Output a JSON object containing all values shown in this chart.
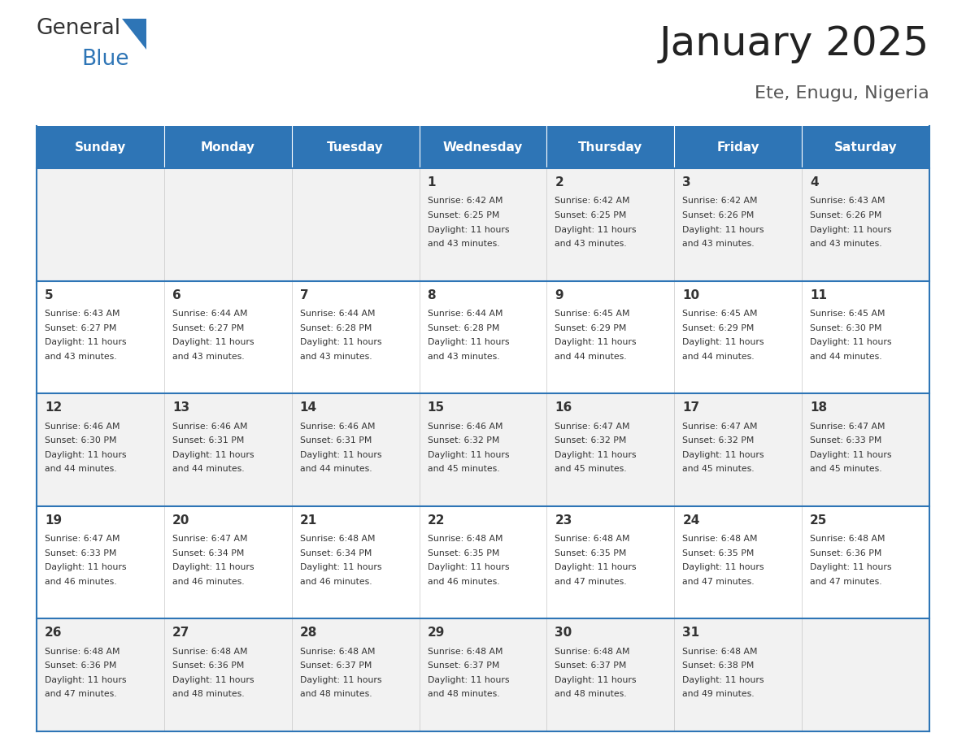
{
  "title": "January 2025",
  "subtitle": "Ete, Enugu, Nigeria",
  "header_color": "#2E75B6",
  "header_text_color": "#FFFFFF",
  "cell_bg_even": "#F2F2F2",
  "cell_bg_odd": "#FFFFFF",
  "border_color": "#2E75B6",
  "text_color": "#333333",
  "days_of_week": [
    "Sunday",
    "Monday",
    "Tuesday",
    "Wednesday",
    "Thursday",
    "Friday",
    "Saturday"
  ],
  "calendar": [
    [
      {
        "day": "",
        "sunrise": "",
        "sunset": "",
        "daylight": ""
      },
      {
        "day": "",
        "sunrise": "",
        "sunset": "",
        "daylight": ""
      },
      {
        "day": "",
        "sunrise": "",
        "sunset": "",
        "daylight": ""
      },
      {
        "day": "1",
        "sunrise": "6:42 AM",
        "sunset": "6:25 PM",
        "daylight": "11 hours and 43 minutes."
      },
      {
        "day": "2",
        "sunrise": "6:42 AM",
        "sunset": "6:25 PM",
        "daylight": "11 hours and 43 minutes."
      },
      {
        "day": "3",
        "sunrise": "6:42 AM",
        "sunset": "6:26 PM",
        "daylight": "11 hours and 43 minutes."
      },
      {
        "day": "4",
        "sunrise": "6:43 AM",
        "sunset": "6:26 PM",
        "daylight": "11 hours and 43 minutes."
      }
    ],
    [
      {
        "day": "5",
        "sunrise": "6:43 AM",
        "sunset": "6:27 PM",
        "daylight": "11 hours and 43 minutes."
      },
      {
        "day": "6",
        "sunrise": "6:44 AM",
        "sunset": "6:27 PM",
        "daylight": "11 hours and 43 minutes."
      },
      {
        "day": "7",
        "sunrise": "6:44 AM",
        "sunset": "6:28 PM",
        "daylight": "11 hours and 43 minutes."
      },
      {
        "day": "8",
        "sunrise": "6:44 AM",
        "sunset": "6:28 PM",
        "daylight": "11 hours and 43 minutes."
      },
      {
        "day": "9",
        "sunrise": "6:45 AM",
        "sunset": "6:29 PM",
        "daylight": "11 hours and 44 minutes."
      },
      {
        "day": "10",
        "sunrise": "6:45 AM",
        "sunset": "6:29 PM",
        "daylight": "11 hours and 44 minutes."
      },
      {
        "day": "11",
        "sunrise": "6:45 AM",
        "sunset": "6:30 PM",
        "daylight": "11 hours and 44 minutes."
      }
    ],
    [
      {
        "day": "12",
        "sunrise": "6:46 AM",
        "sunset": "6:30 PM",
        "daylight": "11 hours and 44 minutes."
      },
      {
        "day": "13",
        "sunrise": "6:46 AM",
        "sunset": "6:31 PM",
        "daylight": "11 hours and 44 minutes."
      },
      {
        "day": "14",
        "sunrise": "6:46 AM",
        "sunset": "6:31 PM",
        "daylight": "11 hours and 44 minutes."
      },
      {
        "day": "15",
        "sunrise": "6:46 AM",
        "sunset": "6:32 PM",
        "daylight": "11 hours and 45 minutes."
      },
      {
        "day": "16",
        "sunrise": "6:47 AM",
        "sunset": "6:32 PM",
        "daylight": "11 hours and 45 minutes."
      },
      {
        "day": "17",
        "sunrise": "6:47 AM",
        "sunset": "6:32 PM",
        "daylight": "11 hours and 45 minutes."
      },
      {
        "day": "18",
        "sunrise": "6:47 AM",
        "sunset": "6:33 PM",
        "daylight": "11 hours and 45 minutes."
      }
    ],
    [
      {
        "day": "19",
        "sunrise": "6:47 AM",
        "sunset": "6:33 PM",
        "daylight": "11 hours and 46 minutes."
      },
      {
        "day": "20",
        "sunrise": "6:47 AM",
        "sunset": "6:34 PM",
        "daylight": "11 hours and 46 minutes."
      },
      {
        "day": "21",
        "sunrise": "6:48 AM",
        "sunset": "6:34 PM",
        "daylight": "11 hours and 46 minutes."
      },
      {
        "day": "22",
        "sunrise": "6:48 AM",
        "sunset": "6:35 PM",
        "daylight": "11 hours and 46 minutes."
      },
      {
        "day": "23",
        "sunrise": "6:48 AM",
        "sunset": "6:35 PM",
        "daylight": "11 hours and 47 minutes."
      },
      {
        "day": "24",
        "sunrise": "6:48 AM",
        "sunset": "6:35 PM",
        "daylight": "11 hours and 47 minutes."
      },
      {
        "day": "25",
        "sunrise": "6:48 AM",
        "sunset": "6:36 PM",
        "daylight": "11 hours and 47 minutes."
      }
    ],
    [
      {
        "day": "26",
        "sunrise": "6:48 AM",
        "sunset": "6:36 PM",
        "daylight": "11 hours and 47 minutes."
      },
      {
        "day": "27",
        "sunrise": "6:48 AM",
        "sunset": "6:36 PM",
        "daylight": "11 hours and 48 minutes."
      },
      {
        "day": "28",
        "sunrise": "6:48 AM",
        "sunset": "6:37 PM",
        "daylight": "11 hours and 48 minutes."
      },
      {
        "day": "29",
        "sunrise": "6:48 AM",
        "sunset": "6:37 PM",
        "daylight": "11 hours and 48 minutes."
      },
      {
        "day": "30",
        "sunrise": "6:48 AM",
        "sunset": "6:37 PM",
        "daylight": "11 hours and 48 minutes."
      },
      {
        "day": "31",
        "sunrise": "6:48 AM",
        "sunset": "6:38 PM",
        "daylight": "11 hours and 49 minutes."
      },
      {
        "day": "",
        "sunrise": "",
        "sunset": "",
        "daylight": ""
      }
    ]
  ],
  "logo_text1": "General",
  "logo_text2": "Blue",
  "logo_color1": "#333333",
  "logo_color2": "#2E75B6",
  "fig_width": 11.88,
  "fig_height": 9.18,
  "dpi": 100
}
